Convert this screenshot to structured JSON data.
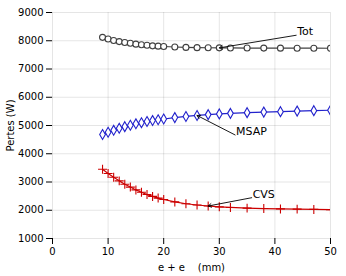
{
  "chart_data": {
    "type": "line",
    "x": [
      9,
      10,
      11,
      12,
      13,
      14,
      15,
      16,
      17,
      18,
      19,
      20,
      22,
      24,
      26,
      28,
      30,
      32,
      35,
      38,
      41,
      44,
      47,
      50
    ],
    "series": [
      {
        "name": "Tot",
        "color": "#404040",
        "marker": "circle",
        "values": [
          8120,
          8060,
          8010,
          7970,
          7940,
          7910,
          7880,
          7860,
          7840,
          7820,
          7808,
          7796,
          7778,
          7765,
          7756,
          7752,
          7748,
          7745,
          7742,
          7740,
          7738,
          7737,
          7736,
          7735
        ]
      },
      {
        "name": "MSAP",
        "color": "#2222CC",
        "marker": "diamond",
        "values": [
          4680,
          4760,
          4830,
          4900,
          4960,
          5010,
          5060,
          5100,
          5140,
          5175,
          5205,
          5230,
          5280,
          5320,
          5355,
          5385,
          5410,
          5430,
          5455,
          5475,
          5490,
          5510,
          5525,
          5540
        ]
      },
      {
        "name": "CVS",
        "color": "#CC0000",
        "marker": "plus",
        "values": [
          3450,
          3300,
          3170,
          3040,
          2920,
          2820,
          2720,
          2635,
          2555,
          2490,
          2430,
          2380,
          2295,
          2230,
          2185,
          2150,
          2120,
          2100,
          2075,
          2060,
          2048,
          2040,
          2030,
          2020
        ]
      }
    ],
    "xlabel": "e + e    (mm)",
    "ylabel": "Pertes (W)",
    "xlim": [
      0,
      50
    ],
    "ylim": [
      1000,
      9000
    ],
    "xticks": [
      0,
      10,
      20,
      30,
      40,
      50
    ],
    "yticks": [
      1000,
      2000,
      3000,
      4000,
      5000,
      6000,
      7000,
      8000,
      9000
    ],
    "grid": true,
    "annotations": [
      {
        "text": "Tot",
        "x": 30,
        "y": 7748,
        "xytext": [
          44,
          8200
        ]
      },
      {
        "text": "MSAP",
        "x": 26,
        "y": 5355,
        "xytext": [
          33,
          4650
        ]
      },
      {
        "text": "CVS",
        "x": 28,
        "y": 2150,
        "xytext": [
          36,
          2450
        ]
      }
    ]
  }
}
